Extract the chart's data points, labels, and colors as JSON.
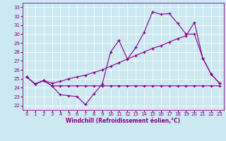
{
  "xlabel": "Windchill (Refroidissement éolien,°C)",
  "xlim": [
    -0.5,
    23.5
  ],
  "ylim": [
    21.5,
    33.5
  ],
  "xticks": [
    0,
    1,
    2,
    3,
    4,
    5,
    6,
    7,
    8,
    9,
    10,
    11,
    12,
    13,
    14,
    15,
    16,
    17,
    18,
    19,
    20,
    21,
    22,
    23
  ],
  "yticks": [
    22,
    23,
    24,
    25,
    26,
    27,
    28,
    29,
    30,
    31,
    32,
    33
  ],
  "bg_color": "#cce8f0",
  "grid_color": "#ffffff",
  "line_color": "#880088",
  "line1_y": [
    25.2,
    24.4,
    24.8,
    24.2,
    23.2,
    23.1,
    23.0,
    22.1,
    23.3,
    24.4,
    28.0,
    29.3,
    27.2,
    28.5,
    30.2,
    32.5,
    32.2,
    32.3,
    31.2,
    30.0,
    30.0,
    27.3,
    25.5,
    24.5
  ],
  "line2_y": [
    25.2,
    24.4,
    24.8,
    24.2,
    24.2,
    24.2,
    24.2,
    24.2,
    24.2,
    24.2,
    24.2,
    24.2,
    24.2,
    24.2,
    24.2,
    24.2,
    24.2,
    24.2,
    24.2,
    24.2,
    24.2,
    24.2,
    24.2,
    24.2
  ],
  "line3_y": [
    25.2,
    24.4,
    24.8,
    24.5,
    24.7,
    25.0,
    25.2,
    25.4,
    25.7,
    26.0,
    26.4,
    26.8,
    27.2,
    27.6,
    28.0,
    28.4,
    28.7,
    29.1,
    29.5,
    29.8,
    31.3,
    27.3,
    25.5,
    24.5
  ],
  "tick_fontsize": 5,
  "xlabel_fontsize": 5.5
}
